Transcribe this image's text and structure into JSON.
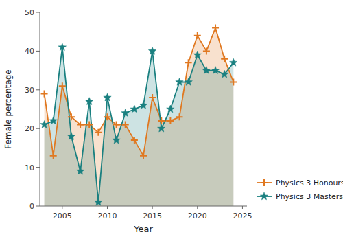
{
  "chart_data": {
    "type": "area",
    "xlabel": "Year",
    "ylabel": "Female percentage",
    "x": [
      2003,
      2004,
      2005,
      2006,
      2007,
      2008,
      2009,
      2010,
      2011,
      2012,
      2013,
      2014,
      2015,
      2016,
      2017,
      2018,
      2019,
      2020,
      2021,
      2022,
      2023,
      2024
    ],
    "series": [
      {
        "name": "Physics 3 Honours",
        "color": "#E07820",
        "marker": "plus",
        "values": [
          29,
          13,
          31,
          23,
          21,
          21,
          19,
          23,
          21,
          21,
          17,
          13,
          28,
          22,
          22,
          23,
          37,
          44,
          40,
          46,
          38,
          32
        ]
      },
      {
        "name": "Physics 3 Masters",
        "color": "#1A8080",
        "marker": "star",
        "values": [
          21,
          22,
          41,
          18,
          9,
          27,
          1,
          28,
          17,
          24,
          25,
          26,
          40,
          20,
          25,
          32,
          32,
          39,
          35,
          35,
          34,
          37
        ]
      }
    ],
    "xlim": [
      2002.5,
      2025.5
    ],
    "xticks": [
      2005,
      2010,
      2015,
      2020,
      2025
    ],
    "ylim": [
      0,
      50
    ],
    "yticks": [
      0,
      10,
      20,
      30,
      40,
      50
    ],
    "grid": false,
    "legend": "lower right"
  }
}
